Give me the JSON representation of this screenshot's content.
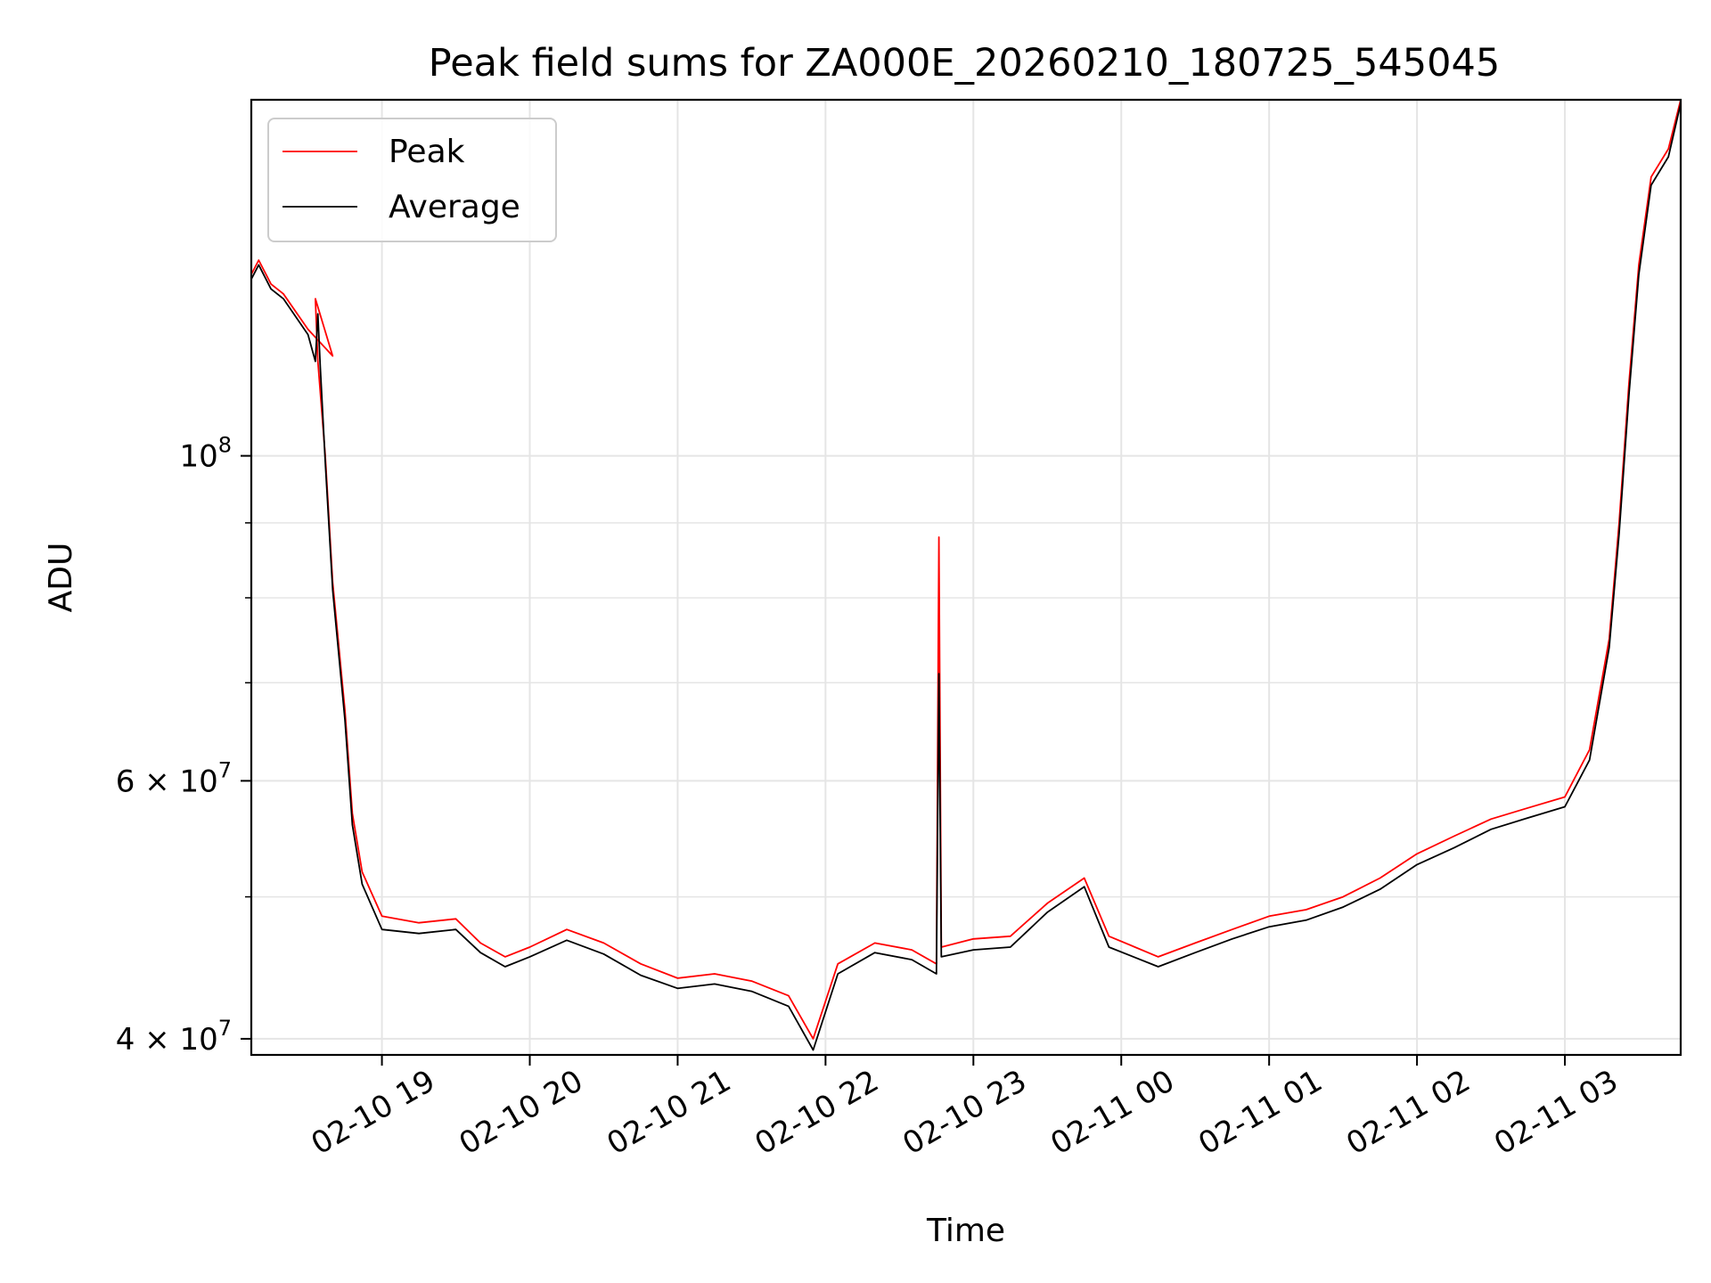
{
  "chart_data": {
    "type": "line",
    "title": "Peak field sums for ZA000E_20260210_180725_545045",
    "xlabel": "Time",
    "ylabel": "ADU",
    "yscale": "log",
    "ylim": [
      39000000,
      175000000
    ],
    "xlim": [
      "2026-02-10 18:07",
      "2026-02-11 03:47"
    ],
    "grid": true,
    "legend_position": "upper left",
    "x_ticks": [
      "02-10 19",
      "02-10 20",
      "02-10 21",
      "02-10 22",
      "02-10 23",
      "02-11 00",
      "02-11 01",
      "02-11 02",
      "02-11 03"
    ],
    "y_ticks": [
      {
        "value": 40000000,
        "base": "4 × 10",
        "exp": "7"
      },
      {
        "value": 60000000,
        "base": "6 × 10",
        "exp": "7"
      },
      {
        "value": 100000000,
        "base": "10",
        "exp": "8"
      }
    ],
    "series": [
      {
        "name": "Peak",
        "color": "#ff0000",
        "points": [
          [
            "2026-02-10 18:07",
            133000000
          ],
          [
            "2026-02-10 18:10",
            136000000
          ],
          [
            "2026-02-10 18:15",
            131000000
          ],
          [
            "2026-02-10 18:20",
            129000000
          ],
          [
            "2026-02-10 18:30",
            122000000
          ],
          [
            "2026-02-10 18:40",
            117000000
          ],
          [
            "2026-02-10 18:33",
            128000000
          ],
          [
            "2026-02-10 18:34",
            116000000
          ],
          [
            "2026-02-10 18:37",
            100000000
          ],
          [
            "2026-02-10 18:40",
            82000000
          ],
          [
            "2026-02-10 18:45",
            67000000
          ],
          [
            "2026-02-10 18:48",
            57000000
          ],
          [
            "2026-02-10 18:52",
            52000000
          ],
          [
            "2026-02-10 19:00",
            48500000
          ],
          [
            "2026-02-10 19:15",
            48000000
          ],
          [
            "2026-02-10 19:30",
            48300000
          ],
          [
            "2026-02-10 19:40",
            46500000
          ],
          [
            "2026-02-10 19:50",
            45500000
          ],
          [
            "2026-02-10 20:00",
            46200000
          ],
          [
            "2026-02-10 20:15",
            47500000
          ],
          [
            "2026-02-10 20:30",
            46500000
          ],
          [
            "2026-02-10 20:45",
            45000000
          ],
          [
            "2026-02-10 21:00",
            44000000
          ],
          [
            "2026-02-10 21:15",
            44300000
          ],
          [
            "2026-02-10 21:30",
            43800000
          ],
          [
            "2026-02-10 21:45",
            42800000
          ],
          [
            "2026-02-10 21:55",
            40000000
          ],
          [
            "2026-02-10 22:05",
            45000000
          ],
          [
            "2026-02-10 22:20",
            46500000
          ],
          [
            "2026-02-10 22:35",
            46000000
          ],
          [
            "2026-02-10 22:45",
            45000000
          ],
          [
            "2026-02-10 22:46",
            88000000
          ],
          [
            "2026-02-10 22:47",
            46200000
          ],
          [
            "2026-02-10 23:00",
            46800000
          ],
          [
            "2026-02-10 23:15",
            47000000
          ],
          [
            "2026-02-10 23:30",
            49500000
          ],
          [
            "2026-02-10 23:45",
            51500000
          ],
          [
            "2026-02-10 23:55",
            47000000
          ],
          [
            "2026-02-11 00:15",
            45500000
          ],
          [
            "2026-02-11 00:30",
            46500000
          ],
          [
            "2026-02-11 00:45",
            47500000
          ],
          [
            "2026-02-11 01:00",
            48500000
          ],
          [
            "2026-02-11 01:15",
            49000000
          ],
          [
            "2026-02-11 01:30",
            50000000
          ],
          [
            "2026-02-11 01:45",
            51500000
          ],
          [
            "2026-02-11 02:00",
            53500000
          ],
          [
            "2026-02-11 02:15",
            55000000
          ],
          [
            "2026-02-11 02:30",
            56500000
          ],
          [
            "2026-02-11 02:45",
            57500000
          ],
          [
            "2026-02-11 03:00",
            58500000
          ],
          [
            "2026-02-11 03:10",
            63000000
          ],
          [
            "2026-02-11 03:18",
            75000000
          ],
          [
            "2026-02-11 03:22",
            90000000
          ],
          [
            "2026-02-11 03:26",
            112000000
          ],
          [
            "2026-02-11 03:30",
            135000000
          ],
          [
            "2026-02-11 03:35",
            155000000
          ],
          [
            "2026-02-11 03:42",
            162000000
          ],
          [
            "2026-02-11 03:47",
            175000000
          ]
        ]
      },
      {
        "name": "Average",
        "color": "#000000",
        "points": [
          [
            "2026-02-10 18:07",
            132000000
          ],
          [
            "2026-02-10 18:10",
            135000000
          ],
          [
            "2026-02-10 18:15",
            130000000
          ],
          [
            "2026-02-10 18:20",
            128000000
          ],
          [
            "2026-02-10 18:30",
            121000000
          ],
          [
            "2026-02-10 18:33",
            116000000
          ],
          [
            "2026-02-10 18:34",
            125000000
          ],
          [
            "2026-02-10 18:35",
            115000000
          ],
          [
            "2026-02-10 18:37",
            99000000
          ],
          [
            "2026-02-10 18:40",
            81000000
          ],
          [
            "2026-02-10 18:45",
            66000000
          ],
          [
            "2026-02-10 18:48",
            56000000
          ],
          [
            "2026-02-10 18:52",
            51000000
          ],
          [
            "2026-02-10 19:00",
            47500000
          ],
          [
            "2026-02-10 19:15",
            47200000
          ],
          [
            "2026-02-10 19:30",
            47500000
          ],
          [
            "2026-02-10 19:40",
            45800000
          ],
          [
            "2026-02-10 19:50",
            44800000
          ],
          [
            "2026-02-10 20:00",
            45500000
          ],
          [
            "2026-02-10 20:15",
            46700000
          ],
          [
            "2026-02-10 20:30",
            45700000
          ],
          [
            "2026-02-10 20:45",
            44200000
          ],
          [
            "2026-02-10 21:00",
            43300000
          ],
          [
            "2026-02-10 21:15",
            43600000
          ],
          [
            "2026-02-10 21:30",
            43100000
          ],
          [
            "2026-02-10 21:45",
            42100000
          ],
          [
            "2026-02-10 21:55",
            39300000
          ],
          [
            "2026-02-10 22:05",
            44300000
          ],
          [
            "2026-02-10 22:20",
            45800000
          ],
          [
            "2026-02-10 22:35",
            45300000
          ],
          [
            "2026-02-10 22:45",
            44300000
          ],
          [
            "2026-02-10 22:46",
            71000000
          ],
          [
            "2026-02-10 22:47",
            45500000
          ],
          [
            "2026-02-10 23:00",
            46000000
          ],
          [
            "2026-02-10 23:15",
            46200000
          ],
          [
            "2026-02-10 23:30",
            48800000
          ],
          [
            "2026-02-10 23:45",
            50800000
          ],
          [
            "2026-02-10 23:55",
            46200000
          ],
          [
            "2026-02-11 00:15",
            44800000
          ],
          [
            "2026-02-11 00:30",
            45800000
          ],
          [
            "2026-02-11 00:45",
            46800000
          ],
          [
            "2026-02-11 01:00",
            47700000
          ],
          [
            "2026-02-11 01:15",
            48200000
          ],
          [
            "2026-02-11 01:30",
            49200000
          ],
          [
            "2026-02-11 01:45",
            50600000
          ],
          [
            "2026-02-11 02:00",
            52600000
          ],
          [
            "2026-02-11 02:15",
            54000000
          ],
          [
            "2026-02-11 02:30",
            55600000
          ],
          [
            "2026-02-11 02:45",
            56600000
          ],
          [
            "2026-02-11 03:00",
            57600000
          ],
          [
            "2026-02-11 03:10",
            62000000
          ],
          [
            "2026-02-11 03:18",
            74000000
          ],
          [
            "2026-02-11 03:22",
            88500000
          ],
          [
            "2026-02-11 03:26",
            110000000
          ],
          [
            "2026-02-11 03:30",
            133000000
          ],
          [
            "2026-02-11 03:35",
            153000000
          ],
          [
            "2026-02-11 03:42",
            160000000
          ],
          [
            "2026-02-11 03:47",
            174000000
          ]
        ]
      }
    ]
  }
}
